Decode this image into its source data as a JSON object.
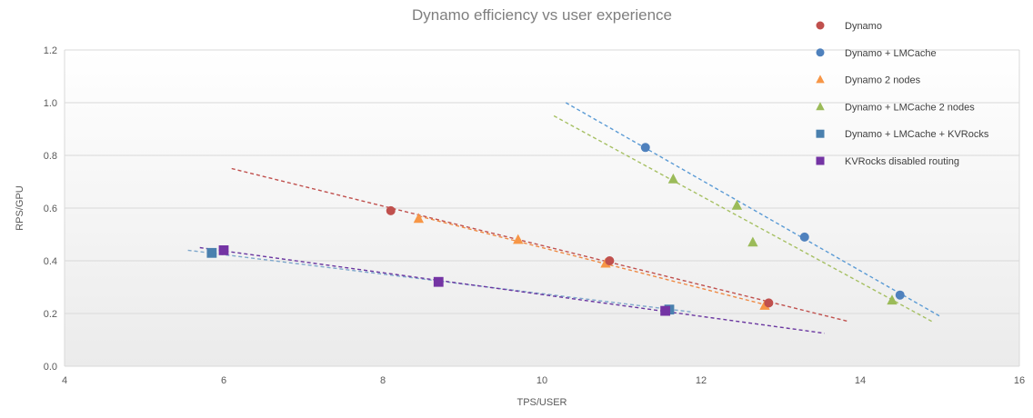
{
  "chart_data": {
    "type": "scatter",
    "title": "Dynamo efficiency vs user experience",
    "xlabel": "TPS/USER",
    "ylabel": "RPS/GPU",
    "xlim": [
      4,
      16
    ],
    "ylim": [
      0,
      1.2
    ],
    "xticks": [
      4,
      6,
      8,
      10,
      12,
      14,
      16
    ],
    "xtick_labels": [
      "4",
      "6",
      "8",
      "10",
      "12",
      "14",
      "16"
    ],
    "yticks": [
      0,
      0.2,
      0.4,
      0.6,
      0.8,
      1.0,
      1.2
    ],
    "ytick_labels": [
      "0.0",
      "0.2",
      "0.4",
      "0.6",
      "0.8",
      "1.0",
      "1.2"
    ],
    "grid": true,
    "legend_position": "top-right",
    "series": [
      {
        "name": "Dynamo",
        "marker": "circle",
        "color": "#C0504D",
        "points": [
          [
            8.1,
            0.59
          ],
          [
            10.85,
            0.4
          ],
          [
            12.85,
            0.24
          ]
        ],
        "trendline": {
          "color": "#C0504D",
          "dash": "4 3",
          "from": [
            6.1,
            0.75
          ],
          "to": [
            13.85,
            0.17
          ]
        }
      },
      {
        "name": "Dynamo + LMCache",
        "marker": "circle",
        "color": "#4F81BD",
        "points": [
          [
            11.3,
            0.83
          ],
          [
            13.3,
            0.49
          ],
          [
            14.5,
            0.27
          ]
        ],
        "trendline": {
          "color": "#5B9BD5",
          "dash": "4 3",
          "from": [
            10.3,
            1.0
          ],
          "to": [
            15.0,
            0.19
          ]
        }
      },
      {
        "name": "Dynamo 2 nodes",
        "marker": "triangle",
        "color": "#F79646",
        "points": [
          [
            8.45,
            0.56
          ],
          [
            9.7,
            0.48
          ],
          [
            10.8,
            0.39
          ],
          [
            12.8,
            0.23
          ]
        ],
        "trendline": {
          "color": "#EF8A44",
          "dash": "4 3",
          "from": [
            8.45,
            0.57
          ],
          "to": [
            12.85,
            0.23
          ]
        }
      },
      {
        "name": "Dynamo + LMCache 2 nodes",
        "marker": "triangle",
        "color": "#9BBB59",
        "points": [
          [
            11.65,
            0.71
          ],
          [
            12.45,
            0.61
          ],
          [
            12.65,
            0.47
          ],
          [
            14.4,
            0.25
          ]
        ],
        "trendline": {
          "color": "#A6C063",
          "dash": "4 3",
          "from": [
            10.15,
            0.95
          ],
          "to": [
            14.9,
            0.17
          ]
        }
      },
      {
        "name": "Dynamo + LMCache + KVRocks",
        "marker": "square",
        "color": "#4A80AE",
        "points": [
          [
            5.85,
            0.43
          ],
          [
            11.6,
            0.215
          ]
        ],
        "trendline": {
          "color": "#7FA8CC",
          "dash": "4 3",
          "from": [
            5.55,
            0.44
          ],
          "to": [
            11.9,
            0.205
          ]
        }
      },
      {
        "name": "KVRocks disabled routing",
        "marker": "square",
        "color": "#7434A4",
        "points": [
          [
            6.0,
            0.44
          ],
          [
            8.7,
            0.32
          ],
          [
            11.55,
            0.21
          ]
        ],
        "trendline": {
          "color": "#6A36A0",
          "dash": "4 3",
          "from": [
            5.7,
            0.45
          ],
          "to": [
            13.55,
            0.125
          ]
        }
      }
    ],
    "colors": {
      "grid": "#d9d9d9",
      "axis_text": "#595959",
      "title_text": "#7f7f7f",
      "legend_text": "#404040",
      "plot_bg_top": "#ffffff",
      "plot_bg_bottom": "#ebebeb"
    }
  }
}
